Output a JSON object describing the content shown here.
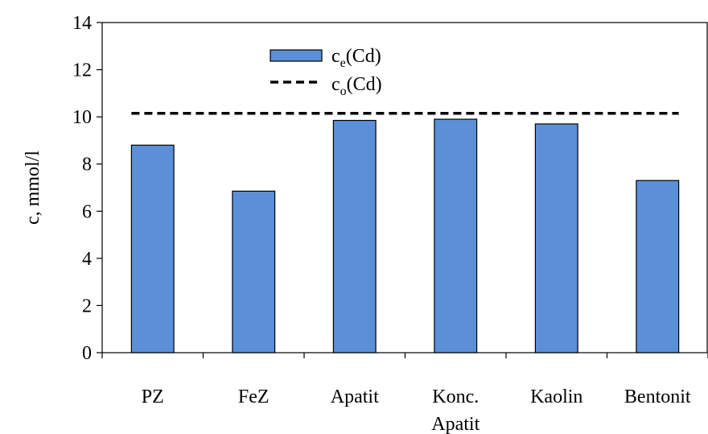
{
  "chart_data": {
    "type": "bar",
    "title": "",
    "xlabel": "",
    "ylabel": "c, mmol/l",
    "ylim": [
      0,
      14
    ],
    "yticks": [
      0,
      2,
      4,
      6,
      8,
      10,
      12,
      14
    ],
    "grid": false,
    "legend_position": "top-center",
    "categories": [
      [
        "PZ"
      ],
      [
        "FeZ"
      ],
      [
        "Apatit"
      ],
      [
        "Konc.",
        "Apatit"
      ],
      [
        "Kaolin"
      ],
      [
        "Bentonit"
      ]
    ],
    "series": [
      {
        "name_base": "c",
        "name_sub": "e",
        "name_suffix": "(Cd)",
        "kind": "bar",
        "color": "#5b8fd8",
        "values": [
          8.8,
          6.85,
          9.85,
          9.9,
          9.7,
          7.3
        ]
      },
      {
        "name_base": "c",
        "name_sub": "o",
        "name_suffix": "(Cd)",
        "kind": "dashed-line",
        "color": "#000000",
        "value": 10.15
      }
    ]
  }
}
